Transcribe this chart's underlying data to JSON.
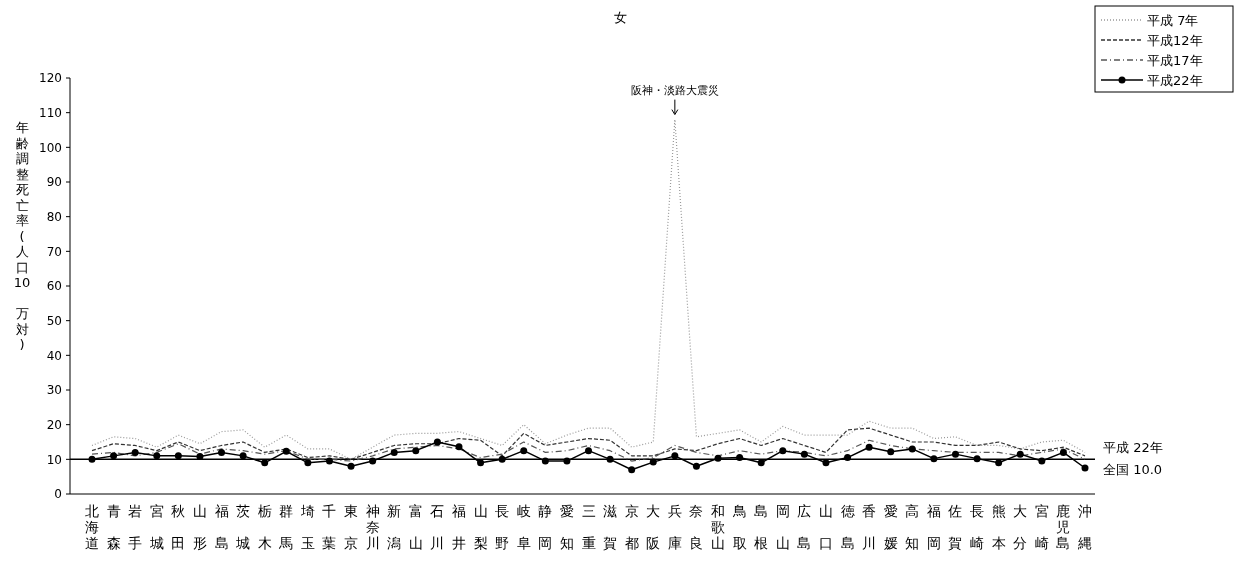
{
  "chart_data": {
    "type": "line",
    "title": "女",
    "ylabel": "年齢調整死亡率(人口10 万対)",
    "categories": [
      "北海道",
      "青森",
      "岩手",
      "宮城",
      "秋田",
      "山形",
      "福島",
      "茨城",
      "栃木",
      "群馬",
      "埼玉",
      "千葉",
      "東京",
      "神奈川",
      "新潟",
      "富山",
      "石川",
      "福井",
      "山梨",
      "長野",
      "岐阜",
      "静岡",
      "愛知",
      "三重",
      "滋賀",
      "京都",
      "大阪",
      "兵庫",
      "奈良",
      "和歌山",
      "鳥取",
      "島根",
      "岡山",
      "広島",
      "山口",
      "徳島",
      "香川",
      "愛媛",
      "高知",
      "福岡",
      "佐賀",
      "長崎",
      "熊本",
      "大分",
      "宮崎",
      "鹿児島",
      "沖縄"
    ],
    "series": [
      {
        "name": "平成 7年",
        "color": "#999999",
        "line_style": "dotted",
        "marker": "none",
        "values": [
          14,
          16.5,
          16,
          13.5,
          17,
          14.5,
          18,
          18.5,
          13.5,
          17,
          13,
          13,
          10,
          13.5,
          17,
          17.5,
          17.5,
          18,
          16,
          14,
          20,
          14.5,
          17,
          19,
          19,
          13.5,
          15,
          108,
          16.5,
          17.5,
          18.5,
          15,
          19.5,
          17,
          17,
          17,
          21,
          19,
          19,
          16,
          16.5,
          14,
          14,
          13,
          15,
          15.5,
          12
        ]
      },
      {
        "name": "平成12年",
        "color": "#333333",
        "line_style": "dashed",
        "marker": "none",
        "values": [
          12.5,
          14.5,
          14,
          12.5,
          15,
          12.5,
          14,
          15,
          12,
          13,
          10.5,
          11,
          10,
          12,
          14,
          14.5,
          14.5,
          16,
          15.5,
          11,
          17.5,
          14,
          15,
          16,
          15.5,
          11,
          11,
          13,
          12.5,
          14.5,
          16,
          14,
          16,
          14,
          12,
          18.5,
          19,
          17,
          15,
          15,
          14,
          14,
          15,
          13,
          12.5,
          13.5,
          11
        ]
      },
      {
        "name": "平成17年",
        "color": "#555555",
        "line_style": "dashdot",
        "marker": "none",
        "values": [
          11.5,
          12,
          11,
          12,
          14.5,
          11.5,
          13,
          12.5,
          11.5,
          12.5,
          10,
          10,
          9.5,
          11,
          13,
          13.5,
          14,
          13,
          10.5,
          11.5,
          15,
          12,
          12.5,
          14,
          12.5,
          9.5,
          10.5,
          14,
          12,
          11,
          12.5,
          11.5,
          12.5,
          12,
          11,
          12.5,
          15.5,
          14,
          13,
          12.5,
          12,
          12,
          12,
          11,
          12,
          13,
          10
        ]
      },
      {
        "name": "平成22年",
        "color": "#000000",
        "line_style": "solid",
        "marker": "circle",
        "values": [
          10,
          11,
          12,
          11,
          11,
          10.8,
          12,
          11,
          9,
          12.3,
          9,
          9.5,
          8,
          9.5,
          12,
          12.5,
          15,
          13.6,
          9,
          10,
          12.5,
          9.5,
          9.5,
          12.5,
          10,
          7,
          9.2,
          11,
          8,
          10.3,
          10.5,
          9,
          12.5,
          11.5,
          9,
          10.5,
          13.5,
          12.2,
          13,
          10.2,
          11.5,
          10.2,
          9,
          11.5,
          9.5,
          12,
          7.5
        ]
      }
    ],
    "ylim": [
      0,
      120
    ],
    "yticks": [
      0,
      10,
      20,
      30,
      40,
      50,
      60,
      70,
      80,
      90,
      100,
      110,
      120
    ],
    "ref_lines": [
      {
        "axis": "y",
        "value": 10,
        "label": "全国 10.0",
        "color": "#000000"
      }
    ],
    "annotations": [
      {
        "text": "阪神・淡路大震災",
        "x": "兵庫",
        "y": 108
      },
      "平成 22年"
    ],
    "legend": "top right",
    "grid": false
  }
}
